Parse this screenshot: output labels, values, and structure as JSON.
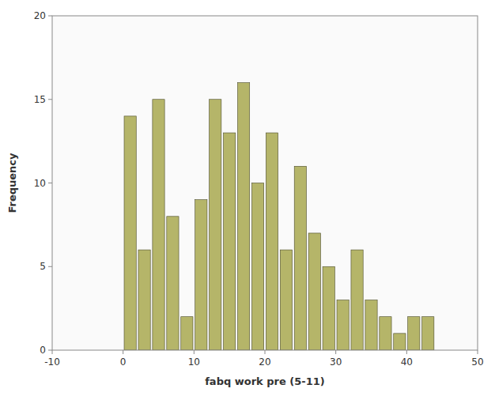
{
  "chart_data": {
    "type": "histogram",
    "xlabel": "fabq work pre (5-11)",
    "ylabel": "Frequency",
    "bins": [
      0,
      2,
      4,
      6,
      8,
      10,
      12,
      14,
      16,
      18,
      20,
      22,
      24,
      26,
      28,
      30,
      32,
      34,
      36,
      38,
      40,
      42,
      44
    ],
    "values": [
      14,
      6,
      15,
      8,
      2,
      9,
      15,
      13,
      16,
      10,
      13,
      6,
      11,
      7,
      5,
      3,
      6,
      3,
      2,
      1,
      2,
      2
    ],
    "color": "#b5b569",
    "xlim": [
      -10,
      50
    ],
    "ylim": [
      0,
      20
    ],
    "xticks": [
      -10,
      0,
      10,
      20,
      30,
      40,
      50
    ],
    "yticks": [
      0,
      5,
      10,
      15,
      20
    ],
    "grid": false
  }
}
